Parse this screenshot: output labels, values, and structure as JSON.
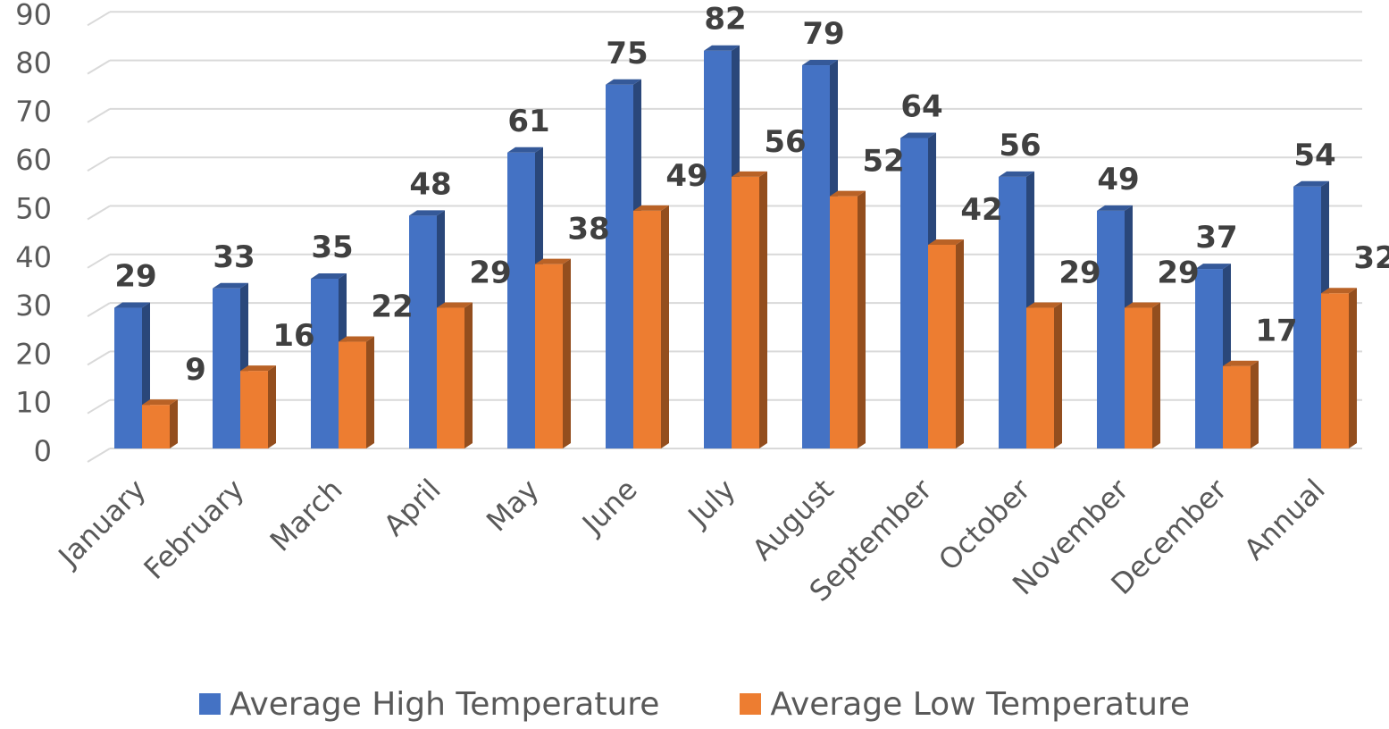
{
  "chart_data": {
    "type": "bar",
    "categories": [
      "January",
      "February",
      "March",
      "April",
      "May",
      "June",
      "July",
      "August",
      "September",
      "October",
      "November",
      "December",
      "Annual"
    ],
    "series": [
      {
        "name": "Average High Temperature",
        "values": [
          29,
          33,
          35,
          48,
          61,
          75,
          82,
          79,
          64,
          56,
          49,
          37,
          54
        ],
        "color": "#4472C4"
      },
      {
        "name": "Average Low Temperature",
        "values": [
          9,
          16,
          22,
          29,
          38,
          49,
          56,
          52,
          42,
          29,
          29,
          17,
          32
        ],
        "color": "#ED7D31"
      }
    ],
    "ylim": [
      0,
      90
    ],
    "yticks": [
      "0",
      "10",
      "20",
      "30",
      "40",
      "50",
      "60",
      "70",
      "80",
      "90"
    ],
    "grid": true,
    "legend": "bottom",
    "style": "3d-clustered-column"
  }
}
